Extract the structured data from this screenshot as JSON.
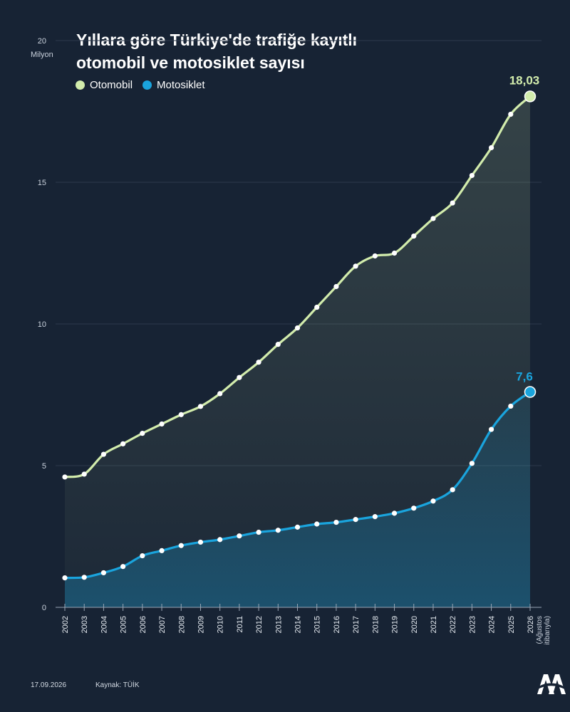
{
  "header": {
    "title_line1": "Yıllara göre Türkiye'de trafiğe kayıtlı",
    "title_line2": "otomobil ve motosiklet sayısı"
  },
  "footer": {
    "date": "17.09.2026",
    "source": "Kaynak: TÜİK"
  },
  "colors": {
    "background": "#172334",
    "otomobil": "#d2ecac",
    "motosiklet": "#1aa4dd",
    "grid": "#2c3a4b",
    "axis_text": "#c9d1dc"
  },
  "chart_data": {
    "type": "line",
    "unit_label": "Milyon",
    "ylim": [
      0,
      20
    ],
    "yticks": [
      0,
      5,
      10,
      15,
      20
    ],
    "grid": true,
    "legend_position": "top-left",
    "x": [
      "2002",
      "2003",
      "2004",
      "2005",
      "2006",
      "2007",
      "2008",
      "2009",
      "2010",
      "2011",
      "2012",
      "2013",
      "2014",
      "2015",
      "2016",
      "2017",
      "2018",
      "2019",
      "2020",
      "2021",
      "2022",
      "2023",
      "2024",
      "2025",
      "2026"
    ],
    "last_tick_note": "(Ağustos itibarıyla)",
    "series": [
      {
        "name": "Otomobil",
        "color": "#d2ecac",
        "end_label": "18,03",
        "values": [
          4.6,
          4.7,
          5.4,
          5.77,
          6.14,
          6.47,
          6.8,
          7.09,
          7.54,
          8.11,
          8.65,
          9.28,
          9.86,
          10.59,
          11.32,
          12.04,
          12.4,
          12.5,
          13.1,
          13.72,
          14.27,
          15.24,
          16.22,
          17.4,
          18.03
        ]
      },
      {
        "name": "Motosiklet",
        "color": "#1aa4dd",
        "end_label": "7,6",
        "values": [
          1.04,
          1.06,
          1.22,
          1.44,
          1.82,
          2.0,
          2.18,
          2.3,
          2.39,
          2.52,
          2.65,
          2.72,
          2.83,
          2.94,
          3.0,
          3.1,
          3.2,
          3.32,
          3.5,
          3.75,
          4.15,
          5.08,
          6.28,
          7.1,
          7.6
        ]
      }
    ]
  }
}
